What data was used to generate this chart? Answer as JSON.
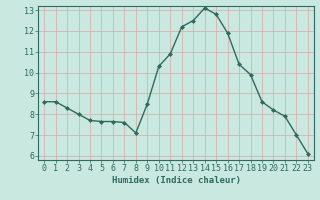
{
  "x": [
    0,
    1,
    2,
    3,
    4,
    5,
    6,
    7,
    8,
    9,
    10,
    11,
    12,
    13,
    14,
    15,
    16,
    17,
    18,
    19,
    20,
    21,
    22,
    23
  ],
  "y": [
    8.6,
    8.6,
    8.3,
    8.0,
    7.7,
    7.65,
    7.65,
    7.6,
    7.1,
    8.5,
    10.3,
    10.9,
    12.2,
    12.5,
    13.1,
    12.8,
    11.9,
    10.4,
    9.9,
    8.6,
    8.2,
    7.9,
    7.0,
    6.1
  ],
  "line_color": "#2e6b5e",
  "marker": "D",
  "marker_size": 2.0,
  "bg_color": "#c8e8e0",
  "grid_color_v": "#d8a8a8",
  "grid_color_h": "#d8c0c0",
  "xlabel": "Humidex (Indice chaleur)",
  "xlim": [
    -0.5,
    23.5
  ],
  "ylim": [
    5.8,
    13.2
  ],
  "yticks": [
    6,
    7,
    8,
    9,
    10,
    11,
    12,
    13
  ],
  "xticks": [
    0,
    1,
    2,
    3,
    4,
    5,
    6,
    7,
    8,
    9,
    10,
    11,
    12,
    13,
    14,
    15,
    16,
    17,
    18,
    19,
    20,
    21,
    22,
    23
  ],
  "label_fontsize": 6.5,
  "tick_fontsize": 6.0,
  "line_width": 1.0
}
